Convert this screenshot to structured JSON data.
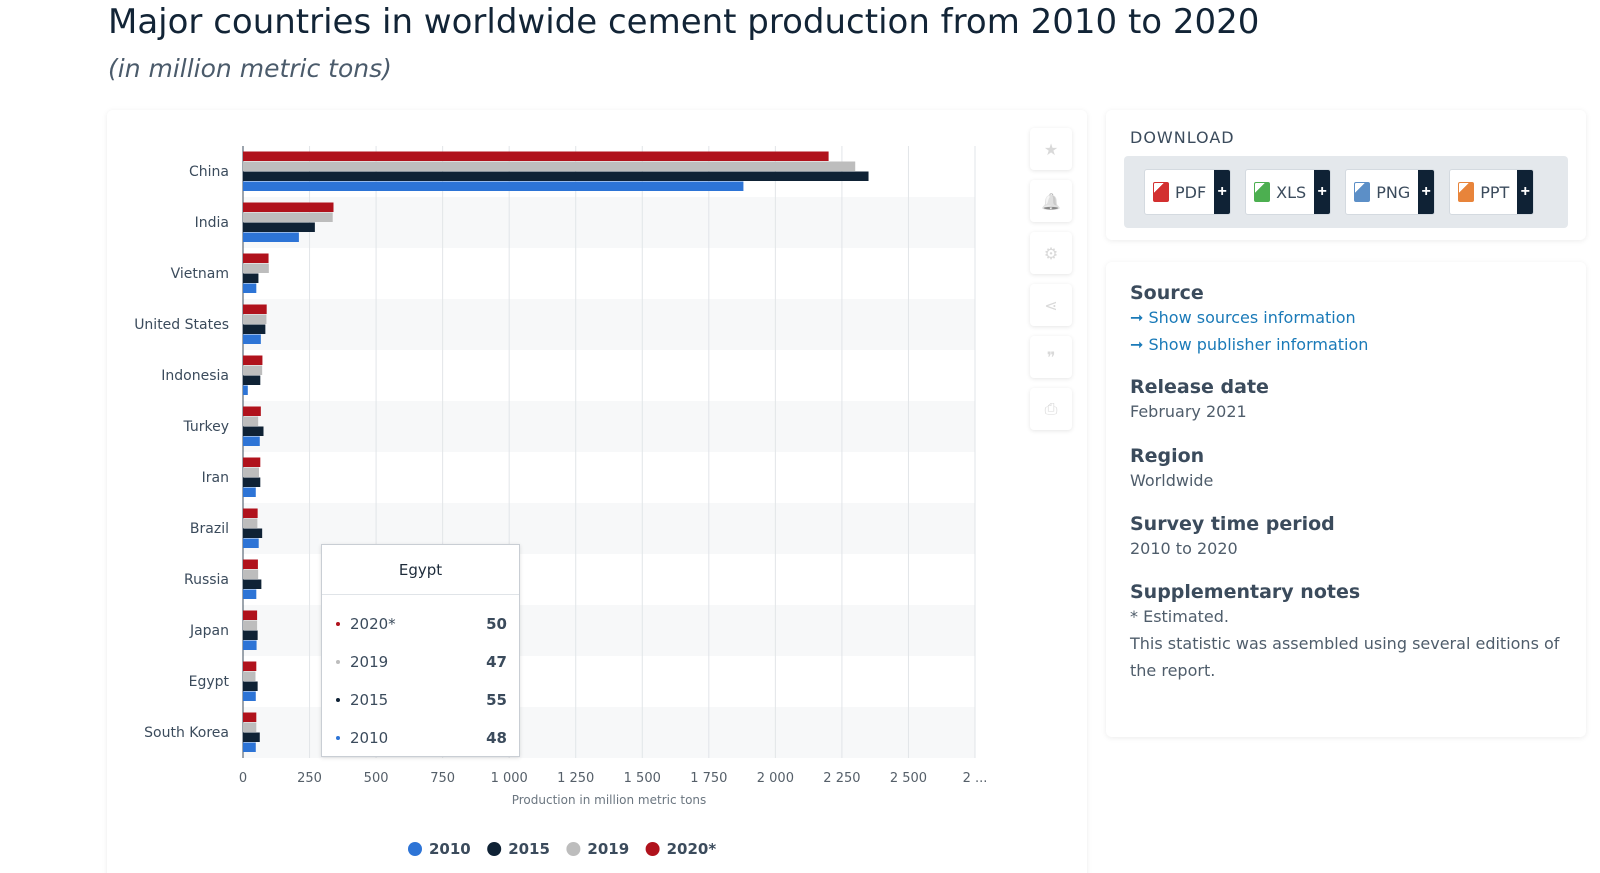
{
  "header": {
    "title": "Major countries in worldwide cement production from 2010 to 2020",
    "subtitle": "(in million metric tons)"
  },
  "chart_data": {
    "type": "bar",
    "orientation": "horizontal",
    "categories": [
      "China",
      "India",
      "Vietnam",
      "United States",
      "Indonesia",
      "Turkey",
      "Iran",
      "Brazil",
      "Russia",
      "Japan",
      "Egypt",
      "South Korea"
    ],
    "series": [
      {
        "name": "2020*",
        "color": "#b0121c",
        "values": [
          2200,
          340,
          96,
          89,
          73,
          67,
          65,
          55,
          56,
          53,
          50,
          50
        ]
      },
      {
        "name": "2019",
        "color": "#bdbdbd",
        "values": [
          2300,
          337,
          97,
          88,
          72,
          57,
          60,
          54,
          57,
          53,
          47,
          50
        ]
      },
      {
        "name": "2015",
        "color": "#0f2235",
        "values": [
          2350,
          270,
          58,
          84,
          65,
          77,
          65,
          72,
          69,
          55,
          55,
          63
        ]
      },
      {
        "name": "2010",
        "color": "#2d74d6",
        "values": [
          1880,
          210,
          50,
          67,
          18,
          63,
          48,
          59,
          50,
          51,
          48,
          48
        ]
      }
    ],
    "x_ticks": [
      "0",
      "250",
      "500",
      "750",
      "1 000",
      "1 250",
      "1 500",
      "1 750",
      "2 000",
      "2 250",
      "2 500",
      "2 ..."
    ],
    "xlim": [
      0,
      2750
    ],
    "xlabel": "Production in million metric tons",
    "grid": true,
    "legend_position": "bottom",
    "legend": [
      {
        "label": "2010",
        "color": "#2d74d6"
      },
      {
        "label": "2015",
        "color": "#0f2235"
      },
      {
        "label": "2019",
        "color": "#bdbdbd"
      },
      {
        "label": "2020*",
        "color": "#b0121c"
      }
    ],
    "tooltip": {
      "title": "Egypt",
      "rows": [
        {
          "label": "2020*",
          "value": "50",
          "color": "#b0121c"
        },
        {
          "label": "2019",
          "value": "47",
          "color": "#bdbdbd"
        },
        {
          "label": "2015",
          "value": "55",
          "color": "#0f2235"
        },
        {
          "label": "2010",
          "value": "48",
          "color": "#2d74d6"
        }
      ]
    }
  },
  "tools": [
    {
      "name": "favorite",
      "icon": "star-icon",
      "glyph": "★"
    },
    {
      "name": "alert",
      "icon": "bell-icon",
      "glyph": "🔔"
    },
    {
      "name": "settings",
      "icon": "gear-icon",
      "glyph": "⚙"
    },
    {
      "name": "share",
      "icon": "share-icon",
      "glyph": "⋖"
    },
    {
      "name": "cite",
      "icon": "quote-icon",
      "glyph": "❞"
    },
    {
      "name": "print",
      "icon": "printer-icon",
      "glyph": "⎙"
    }
  ],
  "download": {
    "title": "DOWNLOAD",
    "buttons": [
      {
        "label": "PDF",
        "icon": "pdf-file-icon",
        "color": "#d32f2f"
      },
      {
        "label": "XLS",
        "icon": "xls-file-icon",
        "color": "#4caf50"
      },
      {
        "label": "PNG",
        "icon": "png-file-icon",
        "color": "#5c8fc7"
      },
      {
        "label": "PPT",
        "icon": "ppt-file-icon",
        "color": "#e8843a"
      }
    ],
    "plus": "+"
  },
  "meta": {
    "source_heading": "Source",
    "source_link": "➞ Show sources information",
    "publisher_link": "➞ Show publisher information",
    "release_heading": "Release date",
    "release_value": "February 2021",
    "region_heading": "Region",
    "region_value": "Worldwide",
    "period_heading": "Survey time period",
    "period_value": "2010 to 2020",
    "notes_heading": "Supplementary notes",
    "notes_line1": "* Estimated.",
    "notes_line2": "This statistic was assembled using several editions of the report."
  }
}
